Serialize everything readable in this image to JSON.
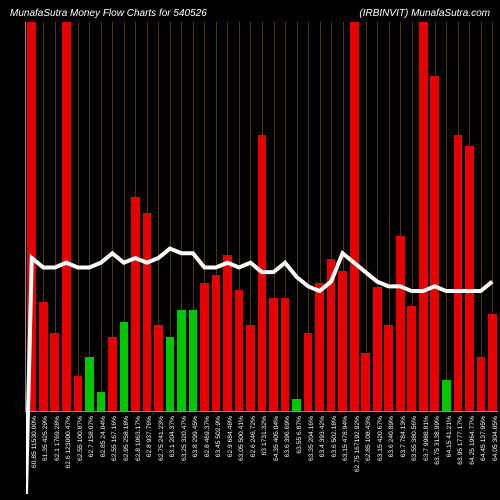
{
  "chart": {
    "type": "bar",
    "title_left": "MunafaSutra  Money Flow  Charts for 540526",
    "title_right": "(IRBINVIT) MunafaSutra.com",
    "title_fontsize": 10,
    "title_color": "#ffffff",
    "background_color": "#000000",
    "axis_color": "#888888",
    "grid_color": "#a67c00",
    "grid_opacity": 0.45,
    "line_color": "#ffffff",
    "positive_color": "#00c800",
    "negative_color": "#e60000",
    "label_color": "#ffffff",
    "label_fontsize": 6.7,
    "bar_width": 0.75,
    "ymax": 100,
    "line_series": [
      50,
      48,
      48,
      49,
      48,
      48,
      49,
      51,
      49,
      50,
      49,
      50,
      52,
      51,
      51,
      48,
      48,
      49,
      48,
      49,
      47,
      47,
      49,
      46,
      44,
      43,
      45,
      51,
      49,
      47,
      45,
      44,
      44,
      43,
      43,
      44,
      43,
      43,
      43,
      43,
      45
    ],
    "bars": [
      {
        "v": 100,
        "pos": false,
        "label": "60.85 11530.00%"
      },
      {
        "v": 28,
        "pos": false,
        "label": "61.35 425.29%"
      },
      {
        "v": 20,
        "pos": false,
        "label": "62.1 1769.28%"
      },
      {
        "v": 100,
        "pos": false,
        "label": "62.6 123000.47%"
      },
      {
        "v": 9,
        "pos": false,
        "label": "62.55 100.87%"
      },
      {
        "v": 14,
        "pos": true,
        "label": "62.7 158.07%"
      },
      {
        "v": 5,
        "pos": true,
        "label": "62.85 24.04%"
      },
      {
        "v": 19,
        "pos": false,
        "label": "62.55 167.16%"
      },
      {
        "v": 23,
        "pos": true,
        "label": "62.95 258.18%"
      },
      {
        "v": 55,
        "pos": false,
        "label": "62.8 1063.17%"
      },
      {
        "v": 51,
        "pos": false,
        "label": "62.8 937.76%"
      },
      {
        "v": 22,
        "pos": false,
        "label": "62.75 241.23%"
      },
      {
        "v": 19,
        "pos": true,
        "label": "63.1 204.37%"
      },
      {
        "v": 26,
        "pos": true,
        "label": "63.25 320.47%"
      },
      {
        "v": 26,
        "pos": true,
        "label": "63.8 299.45%"
      },
      {
        "v": 33,
        "pos": false,
        "label": "62.8 469.37%"
      },
      {
        "v": 35,
        "pos": false,
        "label": "63.45 502.9%"
      },
      {
        "v": 40,
        "pos": false,
        "label": "62.9 684.48%"
      },
      {
        "v": 31,
        "pos": false,
        "label": "63.05 500.41%"
      },
      {
        "v": 22,
        "pos": false,
        "label": "62.6 246.72%"
      },
      {
        "v": 71,
        "pos": false,
        "label": "63 1731.32%"
      },
      {
        "v": 29,
        "pos": false,
        "label": "64.35 405.04%"
      },
      {
        "v": 29,
        "pos": false,
        "label": "63.6 396.69%"
      },
      {
        "v": 3,
        "pos": true,
        "label": "63.55 6.87%"
      },
      {
        "v": 20,
        "pos": false,
        "label": "63.35 204.16%"
      },
      {
        "v": 33,
        "pos": false,
        "label": "63.4 393.42%"
      },
      {
        "v": 39,
        "pos": false,
        "label": "63.6 502.18%"
      },
      {
        "v": 36,
        "pos": false,
        "label": "63.15 478.94%"
      },
      {
        "v": 100,
        "pos": false,
        "label": "62.75 167192.92%"
      },
      {
        "v": 15,
        "pos": false,
        "label": "62.85 108.43%"
      },
      {
        "v": 32,
        "pos": false,
        "label": "63.15 420.67%"
      },
      {
        "v": 22,
        "pos": false,
        "label": "63.6 240.89%"
      },
      {
        "v": 45,
        "pos": false,
        "label": "63.7 784.13%"
      },
      {
        "v": 27,
        "pos": false,
        "label": "63.55 380.56%"
      },
      {
        "v": 100,
        "pos": false,
        "label": "63.7 9988.81%"
      },
      {
        "v": 86,
        "pos": false,
        "label": "63.75 3138.99%"
      },
      {
        "v": 8,
        "pos": true,
        "label": "64.15 41.21%"
      },
      {
        "v": 71,
        "pos": false,
        "label": "63.95 1777.17%"
      },
      {
        "v": 68,
        "pos": false,
        "label": "64.25 1964.77%"
      },
      {
        "v": 14,
        "pos": false,
        "label": "64.45 137.95%"
      },
      {
        "v": 25,
        "pos": false,
        "label": "64.05 304.05%"
      }
    ]
  }
}
